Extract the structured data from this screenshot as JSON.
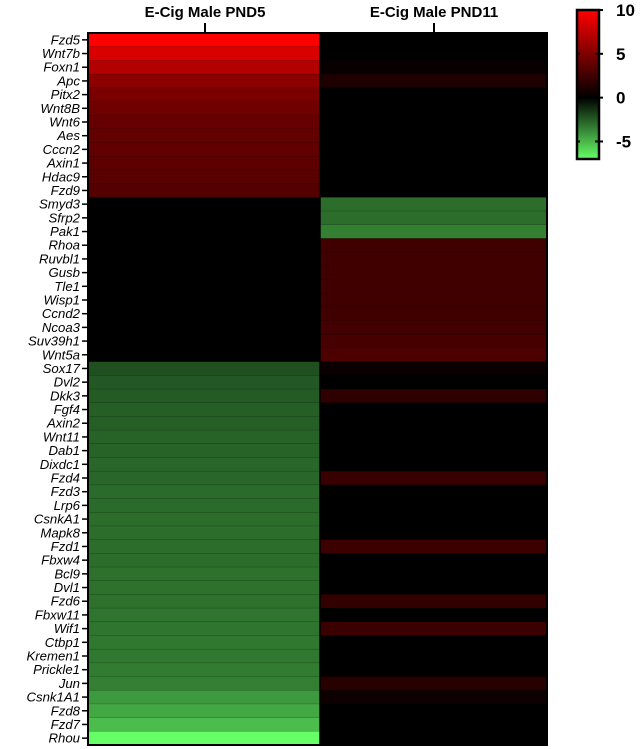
{
  "chart_data": {
    "type": "heatmap",
    "columns": [
      "E-Cig Male PND5",
      "E-Cig Male PND11"
    ],
    "rows": [
      "Fzd5",
      "Wnt7b",
      "Foxn1",
      "Apc",
      "Pitx2",
      "Wnt8B",
      "Wnt6",
      "Aes",
      "Cccn2",
      "Axin1",
      "Hdac9",
      "Fzd9",
      "Smyd3",
      "Sfrp2",
      "Pak1",
      "Rhoa",
      "Ruvbl1",
      "Gusb",
      "Tle1",
      "Wisp1",
      "Ccnd2",
      "Ncoa3",
      "Suv39h1",
      "Wnt5a",
      "Sox17",
      "Dvl2",
      "Dkk3",
      "Fgf4",
      "Axin2",
      "Wnt11",
      "Dab1",
      "Dixdc1",
      "Fzd4",
      "Fzd3",
      "Lrp6",
      "CsnkA1",
      "Mapk8",
      "Fzd1",
      "Fbxw4",
      "Bcl9",
      "Dvl1",
      "Fzd6",
      "Fbxw11",
      "Wif1",
      "Ctbp1",
      "Kremen1",
      "Prickle1",
      "Jun",
      "Csnk1A1",
      "Fzd8",
      "Fzd7",
      "Rhou"
    ],
    "values": [
      [
        10.0,
        0.0
      ],
      [
        8.5,
        0.0
      ],
      [
        7.0,
        0.3
      ],
      [
        5.5,
        1.2
      ],
      [
        4.8,
        0.0
      ],
      [
        4.3,
        0.0
      ],
      [
        4.0,
        0.0
      ],
      [
        3.9,
        0.0
      ],
      [
        3.8,
        0.0
      ],
      [
        3.7,
        0.0
      ],
      [
        3.5,
        0.0
      ],
      [
        3.3,
        0.0
      ],
      [
        0.0,
        -3.0
      ],
      [
        0.0,
        -3.0
      ],
      [
        0.0,
        -3.5
      ],
      [
        0.0,
        2.5
      ],
      [
        0.0,
        2.5
      ],
      [
        0.0,
        2.5
      ],
      [
        0.0,
        2.5
      ],
      [
        0.0,
        2.5
      ],
      [
        0.0,
        2.5
      ],
      [
        0.0,
        2.6
      ],
      [
        0.0,
        2.8
      ],
      [
        0.0,
        3.0
      ],
      [
        -2.2,
        0.4
      ],
      [
        -2.4,
        0.0
      ],
      [
        -2.5,
        1.8
      ],
      [
        -2.6,
        0.0
      ],
      [
        -2.6,
        0.0
      ],
      [
        -2.7,
        0.0
      ],
      [
        -2.7,
        0.0
      ],
      [
        -2.8,
        0.0
      ],
      [
        -2.8,
        2.2
      ],
      [
        -2.9,
        0.0
      ],
      [
        -2.9,
        0.0
      ],
      [
        -3.0,
        0.0
      ],
      [
        -3.0,
        0.0
      ],
      [
        -3.0,
        2.4
      ],
      [
        -3.0,
        0.0
      ],
      [
        -3.1,
        0.0
      ],
      [
        -3.1,
        0.0
      ],
      [
        -3.1,
        2.0
      ],
      [
        -3.2,
        0.0
      ],
      [
        -3.2,
        2.3
      ],
      [
        -3.3,
        0.0
      ],
      [
        -3.3,
        0.0
      ],
      [
        -3.4,
        0.0
      ],
      [
        -3.5,
        1.6
      ],
      [
        -4.2,
        0.5
      ],
      [
        -4.6,
        0.0
      ],
      [
        -5.2,
        0.0
      ],
      [
        -7.0,
        0.0
      ]
    ],
    "colorbar": {
      "ticks": [
        10,
        5,
        0,
        -5
      ],
      "range": [
        -7,
        10
      ],
      "high_color": "#ff0000",
      "mid_color": "#000000",
      "low_color": "#66ff66"
    }
  }
}
